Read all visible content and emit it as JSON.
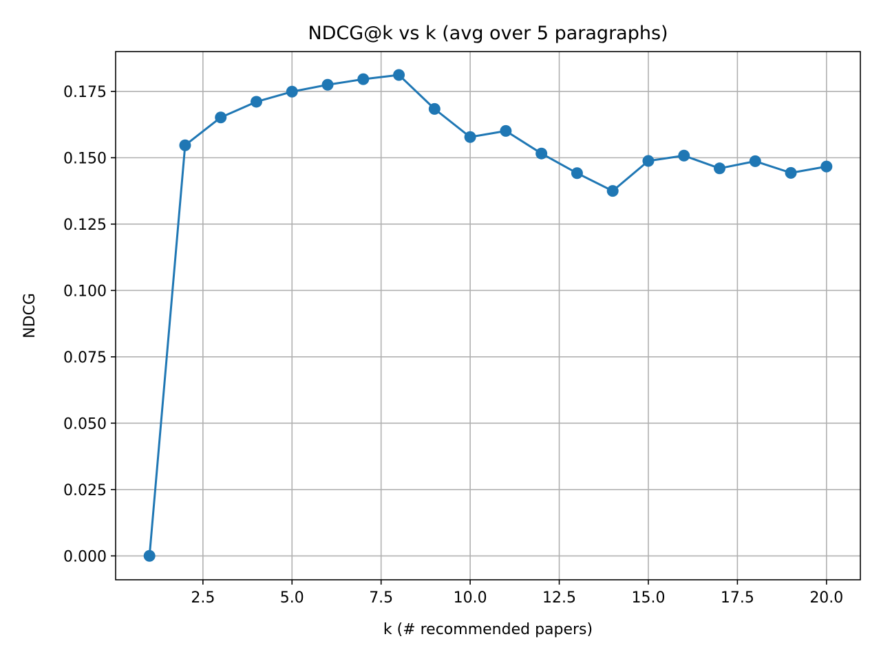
{
  "chart_data": {
    "type": "line",
    "title": "NDCG@k vs k  (avg over 5 paragraphs)",
    "xlabel": "k (# recommended papers)",
    "ylabel": "NDCG",
    "xlim": [
      0.05,
      20.95
    ],
    "ylim": [
      -0.009,
      0.19
    ],
    "grid": true,
    "legend": "none",
    "xticks": [
      2.5,
      5.0,
      7.5,
      10.0,
      12.5,
      15.0,
      17.5,
      20.0
    ],
    "xtick_labels": [
      "2.5",
      "5.0",
      "7.5",
      "10.0",
      "12.5",
      "15.0",
      "17.5",
      "20.0"
    ],
    "yticks": [
      0.0,
      0.025,
      0.05,
      0.075,
      0.1,
      0.125,
      0.15,
      0.175
    ],
    "ytick_labels": [
      "0.000",
      "0.025",
      "0.050",
      "0.075",
      "0.100",
      "0.125",
      "0.150",
      "0.175"
    ],
    "x": [
      1,
      2,
      3,
      4,
      5,
      6,
      7,
      8,
      9,
      10,
      11,
      12,
      13,
      14,
      15,
      16,
      17,
      18,
      19,
      20
    ],
    "series": [
      {
        "values": [
          0.0,
          0.1547,
          0.1652,
          0.1711,
          0.1749,
          0.1775,
          0.1796,
          0.1812,
          0.1684,
          0.1578,
          0.1601,
          0.1516,
          0.1442,
          0.1375,
          0.1488,
          0.1508,
          0.146,
          0.1487,
          0.1443,
          0.1467
        ],
        "color": "#1f77b4"
      }
    ]
  }
}
